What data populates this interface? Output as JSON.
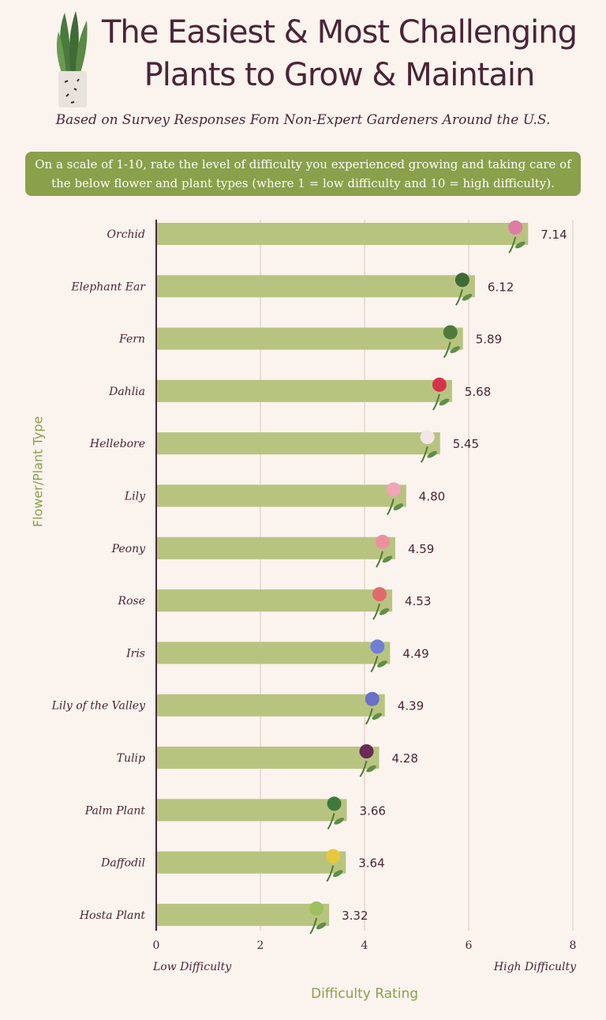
{
  "title": "The Easiest & Most Challenging Plants to Grow & Maintain",
  "subtitle": "Based on Survey Responses Fom Non-Expert Gardeners Around the U.S.",
  "question": "On a scale of 1-10, rate the level of difficulty you experienced growing and taking care of the below flower and plant types (where 1 = low difficulty and 10 = high difficulty).",
  "scale_low_label": "Low Difficulty",
  "scale_high_label": "High Difficulty",
  "colors": {
    "bar": "#b7c47f",
    "accent": "#8aa04a",
    "text": "#4a2536",
    "grid": "#ddd0c2",
    "background": "#fbf3ee"
  },
  "chart_data": {
    "type": "bar",
    "orientation": "horizontal",
    "categories": [
      "Orchid",
      "Elephant Ear",
      "Fern",
      "Dahlia",
      "Hellebore",
      "Lily",
      "Peony",
      "Rose",
      "Iris",
      "Lily of the Valley",
      "Tulip",
      "Palm Plant",
      "Daffodil",
      "Hosta Plant"
    ],
    "values": [
      7.14,
      6.12,
      5.89,
      5.68,
      5.45,
      4.8,
      4.59,
      4.53,
      4.49,
      4.39,
      4.28,
      3.66,
      3.64,
      3.32
    ],
    "value_labels": [
      "7.14",
      "6.12",
      "5.89",
      "5.68",
      "5.45",
      "4.80",
      "4.59",
      "4.53",
      "4.49",
      "4.39",
      "4.28",
      "3.66",
      "3.64",
      "3.32"
    ],
    "xlabel": "Difficulty Rating",
    "ylabel": "Flower/Plant Type",
    "xlim": [
      0,
      8
    ],
    "xticks": [
      0,
      2,
      4,
      6,
      8
    ],
    "grid": "vertical",
    "flower_icons": [
      "orchid-icon",
      "elephant-ear-icon",
      "fern-icon",
      "dahlia-icon",
      "hellebore-icon",
      "lily-icon",
      "peony-icon",
      "rose-icon",
      "iris-icon",
      "lily-of-the-valley-icon",
      "tulip-icon",
      "palm-plant-icon",
      "daffodil-icon",
      "hosta-plant-icon"
    ]
  }
}
